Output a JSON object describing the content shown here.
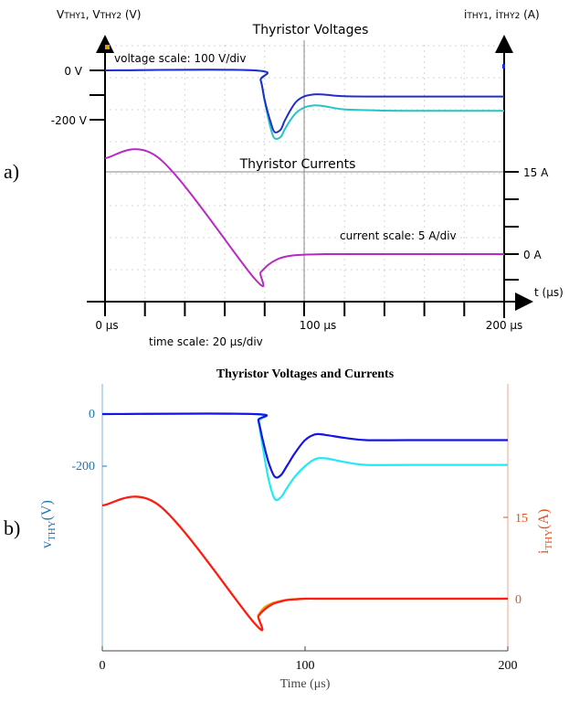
{
  "colors": {
    "scope_v1": "#1f2fc8",
    "scope_v2": "#28c4c4",
    "scope_i1": "#b829c4",
    "scope_i2": "#e6a400",
    "sim_v1": "#1414e6",
    "sim_v2": "#22eaf0",
    "sim_i1": "#ff1a1a",
    "sim_i2": "#e6a400",
    "left_axis": "#1f77b4",
    "right_axis": "#e0531f"
  },
  "panel_a": {
    "label": "a)",
    "left_axis_label": "Vᵀᴴᵞ1, Vᵀᴴᵞ2 (V)",
    "left_axis_label_main": "V",
    "left_axis_label_sub1": "THY1",
    "left_axis_label_mid": ", V",
    "left_axis_label_sub2": "THY2",
    "left_axis_label_unit": " (V)",
    "right_axis_label_main": "i",
    "right_axis_label_sub1": "THY1",
    "right_axis_label_mid": ", i",
    "right_axis_label_sub2": "THY2",
    "right_axis_label_unit": " (A)",
    "title_top": "Thyristor Voltages",
    "title_bottom": "Thyristor Currents",
    "voltage_scale_note": "voltage scale: 100 V/div",
    "current_scale_note": "current scale: 5 A/div",
    "time_scale_note": "time scale: 20 µs/div",
    "v_tick_0": "0 V",
    "v_tick_m200": "-200 V",
    "i_tick_15": "15 A",
    "i_tick_0": "0 A",
    "t_axis_label": "t (µs)",
    "t_tick_0": "0 µs",
    "t_tick_100": "100 µs",
    "t_tick_200": "200 µs"
  },
  "panel_b": {
    "label": "b)",
    "title": "Thyristor Voltages and Currents",
    "ylabel_left_main": "v",
    "ylabel_left_sub": "THY",
    "ylabel_left_unit": "(V)",
    "ylabel_right_main": "i",
    "ylabel_right_sub": "THY",
    "ylabel_right_unit": "(A)",
    "xlabel": "Time (μs)",
    "x_ticks": [
      "0",
      "100",
      "200"
    ],
    "y_left_ticks": [
      "0",
      "-200"
    ],
    "y_right_ticks": [
      "15",
      "0"
    ]
  },
  "chart_data": [
    {
      "type": "line",
      "xlim": [
        0,
        200
      ],
      "ylim_voltage": [
        -330,
        10
      ],
      "ylim_current": [
        -10,
        20
      ],
      "series": [
        {
          "x": [
            0,
            75,
            78,
            80,
            83,
            85,
            88,
            90,
            93,
            96,
            100,
            105,
            110,
            120,
            140,
            170,
            200
          ],
          "values": [
            0,
            0,
            -40,
            -120,
            -210,
            -250,
            -240,
            -205,
            -160,
            -125,
            -105,
            -97,
            -98,
            -105,
            -106,
            -106,
            -106
          ]
        },
        {
          "x": [
            0,
            75,
            78,
            80,
            83,
            85,
            88,
            90,
            93,
            96,
            100,
            105,
            110,
            120,
            140,
            170,
            200
          ],
          "values": [
            0,
            0,
            -40,
            -125,
            -235,
            -275,
            -270,
            -240,
            -200,
            -170,
            -150,
            -142,
            -145,
            -158,
            -163,
            -164,
            -164
          ]
        },
        {
          "x": [
            0,
            27,
            75,
            78,
            82,
            86,
            90,
            95,
            100,
            110,
            125,
            150,
            200
          ],
          "values": [
            17.5,
            17.5,
            -4.5,
            -3.3,
            -1.9,
            -1.0,
            -0.5,
            -0.2,
            -0.1,
            0,
            0,
            0,
            0
          ]
        }
      ]
    },
    {
      "type": "line",
      "title": "Thyristor Voltages and Currents",
      "xlabel": "Time (μs)",
      "xlim": [
        0,
        200
      ],
      "ylim_voltage": [
        -450,
        80
      ],
      "ylim_current": [
        -10,
        20
      ],
      "series": [
        {
          "x": [
            0,
            75,
            77,
            79,
            82,
            85,
            88,
            91,
            95,
            100,
            105,
            110,
            120,
            130,
            150,
            200
          ],
          "values": [
            0,
            0,
            -25,
            -95,
            -185,
            -240,
            -235,
            -200,
            -150,
            -100,
            -78,
            -80,
            -92,
            -100,
            -100,
            -100
          ]
        },
        {
          "x": [
            0,
            75,
            77,
            79,
            82,
            85,
            88,
            91,
            95,
            100,
            105,
            110,
            120,
            130,
            150,
            200
          ],
          "values": [
            0,
            0,
            -30,
            -120,
            -250,
            -325,
            -320,
            -285,
            -240,
            -200,
            -173,
            -170,
            -185,
            -195,
            -195,
            -195
          ]
        },
        {
          "x": [
            0,
            28,
            75,
            77,
            80,
            84,
            88,
            92,
            96,
            100,
            110,
            125,
            150,
            200
          ],
          "values": [
            17.2,
            17.2,
            -4.5,
            -3.2,
            -2.0,
            -1.0,
            -0.5,
            -0.2,
            -0.1,
            0,
            0,
            0,
            0,
            0
          ]
        },
        {
          "x": [
            0,
            28,
            75,
            77,
            80,
            84,
            88,
            92,
            96,
            100,
            110,
            125,
            150,
            200
          ],
          "values": [
            17.2,
            17.2,
            -4.5,
            -3.0,
            -1.6,
            -0.8,
            -0.4,
            -0.15,
            -0.05,
            0,
            0,
            0,
            0,
            0
          ]
        }
      ]
    }
  ]
}
